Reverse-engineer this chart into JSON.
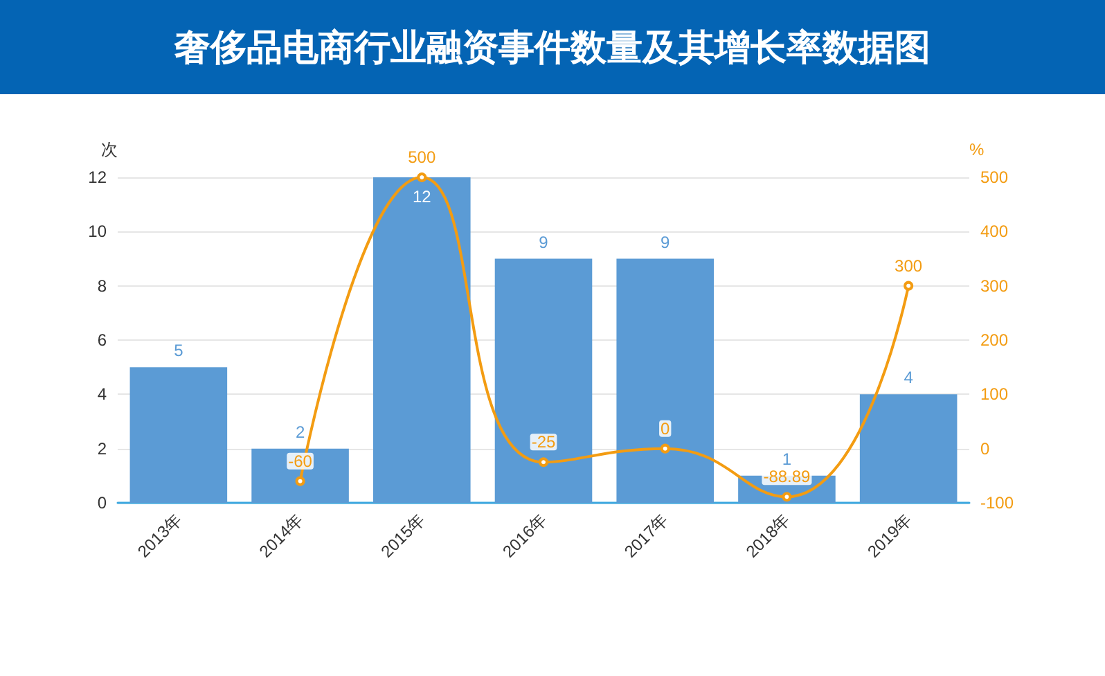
{
  "chart_data": {
    "type": "bar",
    "title": "奢侈品电商行业融资事件数量及其增长率数据图",
    "ylabel": "次",
    "y2label": "%",
    "categories": [
      "2013年",
      "2014年",
      "2015年",
      "2016年",
      "2017年",
      "2018年",
      "2019年"
    ],
    "series": [
      {
        "color": "#5b9bd5",
        "values": [
          5,
          2,
          12,
          9,
          9,
          1,
          4
        ]
      },
      {
        "type": "line",
        "axis": "y2",
        "color": "#f39c12",
        "marker": "circle",
        "values": [
          null,
          -60,
          500,
          -25,
          0,
          -88.89,
          300
        ]
      }
    ],
    "ylim": [
      0,
      12
    ],
    "yticks": [
      0,
      2,
      4,
      6,
      8,
      10,
      12
    ],
    "y2lim": [
      -100,
      500
    ],
    "y2ticks": [
      -100,
      0,
      100,
      200,
      300,
      400,
      500
    ],
    "grid": "y",
    "data_labels": true
  }
}
